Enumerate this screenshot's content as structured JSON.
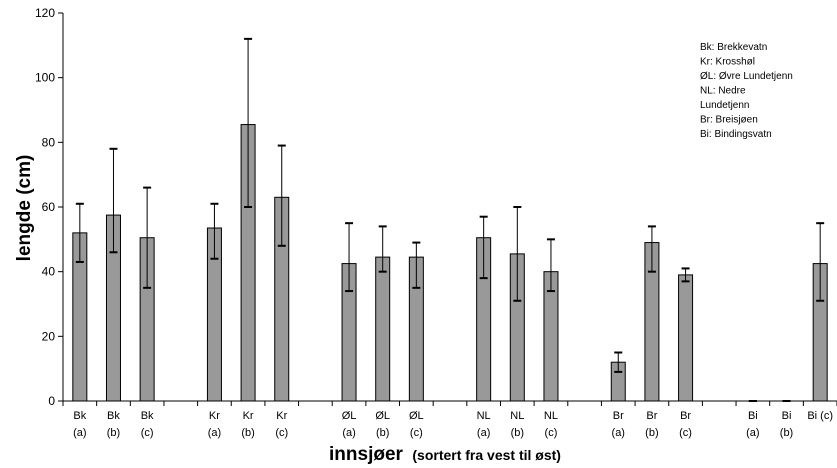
{
  "chart_data": {
    "type": "bar",
    "categories": [
      [
        "Bk",
        "(a)"
      ],
      [
        "Bk",
        "(b)"
      ],
      [
        "Bk",
        "(c)"
      ],
      [
        "",
        ""
      ],
      [
        "Kr",
        "(a)"
      ],
      [
        "Kr",
        "(b)"
      ],
      [
        "Kr",
        "(c)"
      ],
      [
        "",
        ""
      ],
      [
        "ØL",
        "(a)"
      ],
      [
        "ØL",
        "(b)"
      ],
      [
        "ØL",
        "(c)"
      ],
      [
        "",
        ""
      ],
      [
        "NL",
        "(a)"
      ],
      [
        "NL",
        "(b)"
      ],
      [
        "NL",
        "(c)"
      ],
      [
        "",
        ""
      ],
      [
        "Br",
        "(a)"
      ],
      [
        "Br",
        "(b)"
      ],
      [
        "Br",
        "(c)"
      ],
      [
        "",
        ""
      ],
      [
        "Bi",
        "(a)"
      ],
      [
        "Bi",
        "(b)"
      ],
      [
        "Bi (c)",
        ""
      ]
    ],
    "values": [
      52,
      57.5,
      50.5,
      null,
      53.5,
      85.5,
      63,
      null,
      42.5,
      44.5,
      44.5,
      null,
      50.5,
      45.5,
      40,
      null,
      12,
      49,
      39,
      null,
      0,
      0,
      42.5
    ],
    "error_low": [
      43,
      46,
      35,
      null,
      44,
      60,
      48,
      null,
      34,
      40,
      35,
      null,
      38,
      31,
      34,
      null,
      9,
      40,
      37,
      null,
      0,
      0,
      31
    ],
    "error_high": [
      61,
      78,
      66,
      null,
      61,
      112,
      79,
      null,
      55,
      54,
      49,
      null,
      57,
      60,
      50,
      null,
      15,
      54,
      41,
      null,
      0,
      0,
      55
    ],
    "ylim": [
      0,
      120
    ],
    "yticks": [
      "0",
      "20",
      "40",
      "60",
      "80",
      "100",
      "120"
    ],
    "ylabel": "lengde (cm)",
    "xlabel": "innsjøer",
    "xlabel_sub": "(sortert fra vest til øst)",
    "bar_color": "#999999",
    "legend": [
      "Bk: Brekkevatn",
      "Kr: Krosshøl",
      "ØL: Øvre Lundetjenn",
      "NL: Nedre",
      "Lundetjenn",
      "Br: Breisjøen",
      "Bi: Bindingsvatn"
    ],
    "legend_position": "top-right",
    "grid": false
  }
}
